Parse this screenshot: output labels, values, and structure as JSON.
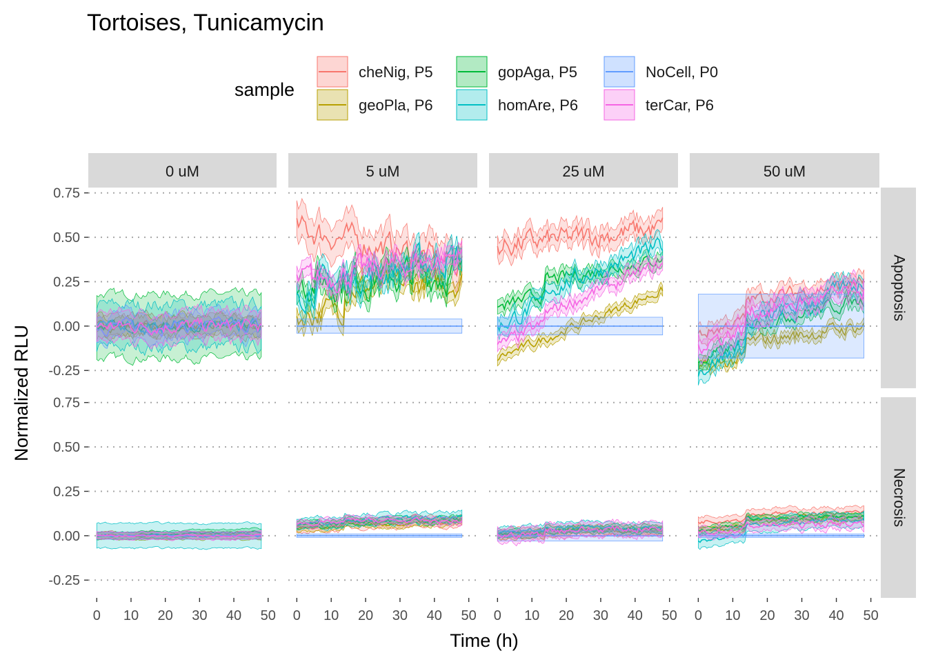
{
  "chart_data": {
    "type": "line",
    "title": "Tortoises, Tunicamycin",
    "xlabel": "Time (h)",
    "ylabel": "Normalized RLU",
    "legend": {
      "title": "sample",
      "placement": "top",
      "entries": [
        {
          "name": "cheNig, P5",
          "color": "#F8766D"
        },
        {
          "name": "geoPla, P6",
          "color": "#B79F00"
        },
        {
          "name": "gopAga, P5",
          "color": "#00BA38"
        },
        {
          "name": "homAre, P6",
          "color": "#00BFC4"
        },
        {
          "name": "NoCell, P0",
          "color": "#619CFF"
        },
        {
          "name": "terCar, P6",
          "color": "#F564E3"
        }
      ]
    },
    "columns": [
      "0 uM",
      "5 uM",
      "25 uM",
      "50 uM"
    ],
    "rows": [
      "Apoptosis",
      "Necrosis"
    ],
    "xlim": [
      0,
      50
    ],
    "xticks": [
      0,
      10,
      20,
      30,
      40,
      50
    ],
    "ylim": [
      -0.35,
      0.78
    ],
    "yticks": [
      -0.25,
      0,
      0.25,
      0.5,
      0.75
    ],
    "ytick_labels": [
      "-0.25",
      "0.00",
      "0.25",
      "0.50",
      "0.75"
    ],
    "grid": "dotted major y",
    "panels": [
      {
        "column": "0 uM",
        "row": "Apoptosis",
        "series": [
          {
            "name": "cheNig, P5",
            "start": 0.0,
            "end": 0.0,
            "jump": 0.0,
            "noise": 0.02,
            "band": 0.06
          },
          {
            "name": "geoPla, P6",
            "start": 0.0,
            "end": 0.0,
            "jump": 0.0,
            "noise": 0.02,
            "band": 0.05
          },
          {
            "name": "gopAga, P5",
            "start": 0.0,
            "end": 0.0,
            "jump": 0.0,
            "noise": 0.02,
            "band": 0.18
          },
          {
            "name": "homAre, P6",
            "start": 0.0,
            "end": 0.0,
            "jump": 0.0,
            "noise": 0.03,
            "band": 0.12
          },
          {
            "name": "NoCell, P0",
            "start": 0.0,
            "end": 0.0,
            "jump": 0.0,
            "noise": 0.03,
            "band": 0.07
          },
          {
            "name": "terCar, P6",
            "start": 0.0,
            "end": 0.0,
            "jump": 0.0,
            "noise": 0.03,
            "band": 0.08
          }
        ]
      },
      {
        "column": "5 uM",
        "row": "Apoptosis",
        "series": [
          {
            "name": "cheNig, P5",
            "start": 0.55,
            "end": 0.35,
            "jump": 0.0,
            "noise": 0.06,
            "band": 0.1
          },
          {
            "name": "geoPla, P6",
            "start": 0.05,
            "end": 0.25,
            "jump": 0.15,
            "noise": 0.06,
            "band": 0.05
          },
          {
            "name": "gopAga, P5",
            "start": 0.25,
            "end": 0.3,
            "jump": 0.0,
            "noise": 0.08,
            "band": 0.06
          },
          {
            "name": "homAre, P6",
            "start": 0.2,
            "end": 0.4,
            "jump": 0.0,
            "noise": 0.07,
            "band": 0.06
          },
          {
            "name": "NoCell, P0",
            "start": 0.0,
            "end": 0.0,
            "jump": 0.0,
            "noise": 0.0,
            "band": 0.04
          },
          {
            "name": "terCar, P6",
            "start": 0.25,
            "end": 0.4,
            "jump": 0.0,
            "noise": 0.06,
            "band": 0.05
          }
        ]
      },
      {
        "column": "25 uM",
        "row": "Apoptosis",
        "series": [
          {
            "name": "cheNig, P5",
            "start": 0.45,
            "end": 0.55,
            "jump": 0.0,
            "noise": 0.05,
            "band": 0.06
          },
          {
            "name": "geoPla, P6",
            "start": -0.18,
            "end": 0.2,
            "jump": 0.0,
            "noise": 0.02,
            "band": 0.03
          },
          {
            "name": "gopAga, P5",
            "start": 0.1,
            "end": 0.38,
            "jump": 0.1,
            "noise": 0.03,
            "band": 0.04
          },
          {
            "name": "homAre, P6",
            "start": 0.0,
            "end": 0.45,
            "jump": 0.1,
            "noise": 0.04,
            "band": 0.05
          },
          {
            "name": "NoCell, P0",
            "start": 0.0,
            "end": 0.0,
            "jump": 0.0,
            "noise": 0.0,
            "band": 0.05
          },
          {
            "name": "terCar, P6",
            "start": -0.12,
            "end": 0.35,
            "jump": 0.08,
            "noise": 0.03,
            "band": 0.04
          }
        ]
      },
      {
        "column": "50 uM",
        "row": "Apoptosis",
        "series": [
          {
            "name": "cheNig, P5",
            "start": -0.05,
            "end": 0.25,
            "jump": 0.15,
            "noise": 0.03,
            "band": 0.05
          },
          {
            "name": "geoPla, P6",
            "start": -0.25,
            "end": 0.0,
            "jump": 0.12,
            "noise": 0.03,
            "band": 0.03
          },
          {
            "name": "gopAga, P5",
            "start": -0.2,
            "end": 0.15,
            "jump": 0.15,
            "noise": 0.03,
            "band": 0.04
          },
          {
            "name": "homAre, P6",
            "start": -0.25,
            "end": 0.25,
            "jump": 0.15,
            "noise": 0.04,
            "band": 0.05
          },
          {
            "name": "NoCell, P0",
            "start": 0.0,
            "end": 0.0,
            "jump": 0.0,
            "noise": 0.0,
            "band": 0.18
          },
          {
            "name": "terCar, P6",
            "start": -0.1,
            "end": 0.2,
            "jump": 0.12,
            "noise": 0.04,
            "band": 0.06
          }
        ]
      },
      {
        "column": "0 uM",
        "row": "Necrosis",
        "series": [
          {
            "name": "cheNig, P5",
            "start": 0.0,
            "end": 0.0,
            "jump": 0.0,
            "noise": 0.005,
            "band": 0.02
          },
          {
            "name": "geoPla, P6",
            "start": 0.0,
            "end": 0.0,
            "jump": 0.0,
            "noise": 0.005,
            "band": 0.02
          },
          {
            "name": "gopAga, P5",
            "start": 0.0,
            "end": 0.02,
            "jump": 0.0,
            "noise": 0.005,
            "band": 0.02
          },
          {
            "name": "homAre, P6",
            "start": 0.0,
            "end": 0.0,
            "jump": 0.0,
            "noise": 0.005,
            "band": 0.07
          },
          {
            "name": "NoCell, P0",
            "start": 0.0,
            "end": 0.0,
            "jump": 0.0,
            "noise": 0.0,
            "band": 0.02
          },
          {
            "name": "terCar, P6",
            "start": 0.0,
            "end": 0.0,
            "jump": 0.0,
            "noise": 0.005,
            "band": 0.02
          }
        ]
      },
      {
        "column": "5 uM",
        "row": "Necrosis",
        "series": [
          {
            "name": "cheNig, P5",
            "start": 0.05,
            "end": 0.08,
            "jump": 0.02,
            "noise": 0.01,
            "band": 0.03
          },
          {
            "name": "geoPla, P6",
            "start": 0.04,
            "end": 0.08,
            "jump": 0.02,
            "noise": 0.01,
            "band": 0.02
          },
          {
            "name": "gopAga, P5",
            "start": 0.06,
            "end": 0.09,
            "jump": 0.02,
            "noise": 0.01,
            "band": 0.02
          },
          {
            "name": "homAre, P6",
            "start": 0.07,
            "end": 0.1,
            "jump": 0.02,
            "noise": 0.01,
            "band": 0.03
          },
          {
            "name": "NoCell, P0",
            "start": 0.0,
            "end": 0.0,
            "jump": 0.0,
            "noise": 0.0,
            "band": 0.01
          },
          {
            "name": "terCar, P6",
            "start": 0.07,
            "end": 0.08,
            "jump": 0.02,
            "noise": 0.01,
            "band": 0.02
          }
        ]
      },
      {
        "column": "25 uM",
        "row": "Necrosis",
        "series": [
          {
            "name": "cheNig, P5",
            "start": 0.01,
            "end": 0.03,
            "jump": 0.02,
            "noise": 0.01,
            "band": 0.03
          },
          {
            "name": "geoPla, P6",
            "start": 0.0,
            "end": 0.03,
            "jump": 0.02,
            "noise": 0.01,
            "band": 0.02
          },
          {
            "name": "gopAga, P5",
            "start": 0.01,
            "end": 0.04,
            "jump": 0.02,
            "noise": 0.01,
            "band": 0.02
          },
          {
            "name": "homAre, P6",
            "start": 0.02,
            "end": 0.05,
            "jump": 0.02,
            "noise": 0.01,
            "band": 0.03
          },
          {
            "name": "NoCell, P0",
            "start": 0.0,
            "end": 0.0,
            "jump": 0.0,
            "noise": 0.0,
            "band": 0.03
          },
          {
            "name": "terCar, P6",
            "start": 0.0,
            "end": 0.04,
            "jump": 0.03,
            "noise": 0.015,
            "band": 0.04
          }
        ]
      },
      {
        "column": "50 uM",
        "row": "Necrosis",
        "series": [
          {
            "name": "cheNig, P5",
            "start": 0.08,
            "end": 0.13,
            "jump": 0.04,
            "noise": 0.01,
            "band": 0.03
          },
          {
            "name": "geoPla, P6",
            "start": 0.02,
            "end": 0.1,
            "jump": 0.05,
            "noise": 0.01,
            "band": 0.02
          },
          {
            "name": "gopAga, P5",
            "start": 0.03,
            "end": 0.11,
            "jump": 0.06,
            "noise": 0.01,
            "band": 0.02
          },
          {
            "name": "homAre, P6",
            "start": -0.03,
            "end": 0.09,
            "jump": 0.08,
            "noise": 0.01,
            "band": 0.04
          },
          {
            "name": "NoCell, P0",
            "start": 0.0,
            "end": 0.0,
            "jump": 0.0,
            "noise": 0.0,
            "band": 0.01
          },
          {
            "name": "terCar, P6",
            "start": 0.02,
            "end": 0.07,
            "jump": 0.03,
            "noise": 0.015,
            "band": 0.03
          }
        ]
      }
    ]
  }
}
